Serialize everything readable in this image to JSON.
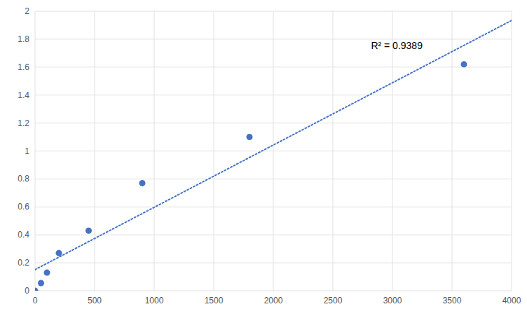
{
  "chart_data": {
    "type": "scatter",
    "series": [
      {
        "type": "scatter",
        "color": "#4472C4",
        "x": [
          0,
          50,
          100,
          200,
          450,
          900,
          1800,
          3600
        ],
        "values": [
          0.0,
          0.055,
          0.13,
          0.27,
          0.43,
          0.77,
          1.1,
          1.62
        ]
      },
      {
        "type": "line",
        "line_style": "dotted",
        "color": "#4472C4",
        "x": [
          0,
          4000
        ],
        "values": [
          0.151406,
          1.933802
        ]
      }
    ],
    "annotations": [
      {
        "text": "R² = 0.9389",
        "x": 2820,
        "y": 1.73
      }
    ],
    "xlim": [
      0,
      4000
    ],
    "ylim": [
      0,
      2
    ],
    "xticks": [
      0,
      500,
      1000,
      1500,
      2000,
      2500,
      3000,
      3500,
      4000
    ],
    "yticks": [
      0,
      0.2,
      0.4,
      0.6,
      0.8,
      1,
      1.2,
      1.4,
      1.6,
      1.8,
      2
    ],
    "grid": true
  }
}
